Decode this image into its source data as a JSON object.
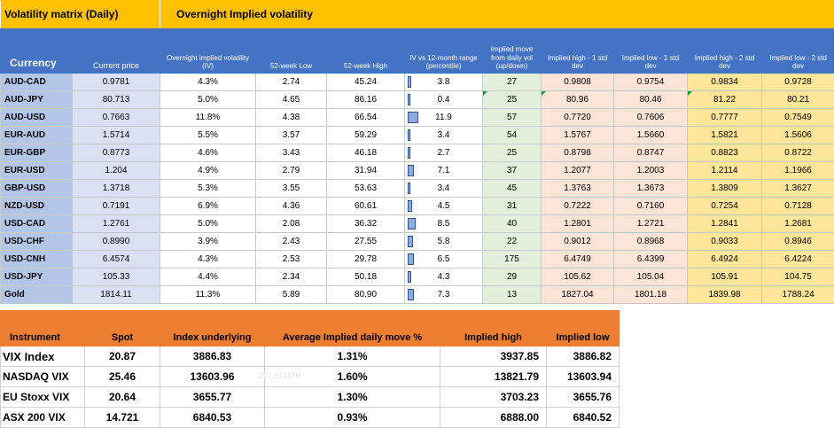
{
  "matrix": {
    "title": "Volatility matrix (Daily)",
    "subtitle": "Overnight Implied volatility",
    "headers": {
      "currency": "Currency",
      "current_price": "Current price",
      "iv": "Overnight implied volatility (IV)",
      "low52": "52-week Low",
      "high52": "52-week High",
      "pct": "IV vs 12-month range (percentile)",
      "move": "Implied move from daily vol (up/down)",
      "h1": "Implied high - 1 std dev",
      "l1": "Implied low - 1 std dev",
      "h2": "Implied high - 2 std dev",
      "l2": "Implied low - 2 std dev"
    },
    "rows": [
      {
        "pair": "AUD-CAD",
        "price": "0.9781",
        "iv": "4.3%",
        "low": "2.74",
        "high": "45.24",
        "pct": "3.8",
        "pctv": 3.8,
        "move": "27",
        "h1": "0.9808",
        "l1": "0.9754",
        "h2": "0.9834",
        "l2": "0.9728"
      },
      {
        "pair": "AUD-JPY",
        "price": "80.713",
        "iv": "5.0%",
        "low": "4.65",
        "high": "86.16",
        "pct": "0.4",
        "pctv": 0.4,
        "move": "25",
        "h1": "80.96",
        "l1": "80.46",
        "h2": "81.22",
        "l2": "80.21"
      },
      {
        "pair": "AUD-USD",
        "price": "0.7663",
        "iv": "11.8%",
        "low": "4.38",
        "high": "66.54",
        "pct": "11.9",
        "pctv": 11.9,
        "move": "57",
        "h1": "0.7720",
        "l1": "0.7606",
        "h2": "0.7777",
        "l2": "0.7549"
      },
      {
        "pair": "EUR-AUD",
        "price": "1.5714",
        "iv": "5.5%",
        "low": "3.57",
        "high": "59.29",
        "pct": "3.4",
        "pctv": 3.4,
        "move": "54",
        "h1": "1.5767",
        "l1": "1.5660",
        "h2": "1.5821",
        "l2": "1.5606"
      },
      {
        "pair": "EUR-GBP",
        "price": "0.8773",
        "iv": "4.6%",
        "low": "3.43",
        "high": "46.18",
        "pct": "2.7",
        "pctv": 2.7,
        "move": "25",
        "h1": "0.8798",
        "l1": "0.8747",
        "h2": "0.8823",
        "l2": "0.8722"
      },
      {
        "pair": "EUR-USD",
        "price": "1.204",
        "iv": "4.9%",
        "low": "2.79",
        "high": "31.94",
        "pct": "7.1",
        "pctv": 7.1,
        "move": "37",
        "h1": "1.2077",
        "l1": "1.2003",
        "h2": "1.2114",
        "l2": "1.1966"
      },
      {
        "pair": "GBP-USD",
        "price": "1.3718",
        "iv": "5.3%",
        "low": "3.55",
        "high": "53.63",
        "pct": "3.4",
        "pctv": 3.4,
        "move": "45",
        "h1": "1.3763",
        "l1": "1.3673",
        "h2": "1.3809",
        "l2": "1.3627"
      },
      {
        "pair": "NZD-USD",
        "price": "0.7191",
        "iv": "6.9%",
        "low": "4.36",
        "high": "60.61",
        "pct": "4.5",
        "pctv": 4.5,
        "move": "31",
        "h1": "0.7222",
        "l1": "0.7160",
        "h2": "0.7254",
        "l2": "0.7128"
      },
      {
        "pair": "USD-CAD",
        "price": "1.2761",
        "iv": "5.0%",
        "low": "2.08",
        "high": "36.32",
        "pct": "8.5",
        "pctv": 8.5,
        "move": "40",
        "h1": "1.2801",
        "l1": "1.2721",
        "h2": "1.2841",
        "l2": "1.2681"
      },
      {
        "pair": "USD-CHF",
        "price": "0.8990",
        "iv": "3.9%",
        "low": "2.43",
        "high": "27.55",
        "pct": "5.8",
        "pctv": 5.8,
        "move": "22",
        "h1": "0.9012",
        "l1": "0.8968",
        "h2": "0.9033",
        "l2": "0.8946"
      },
      {
        "pair": "USD-CNH",
        "price": "6.4574",
        "iv": "4.3%",
        "low": "2.53",
        "high": "29.78",
        "pct": "6.5",
        "pctv": 6.5,
        "move": "175",
        "h1": "6.4749",
        "l1": "6.4399",
        "h2": "6.4924",
        "l2": "6.4224"
      },
      {
        "pair": "USD-JPY",
        "price": "105.33",
        "iv": "4.4%",
        "low": "2.34",
        "high": "50.18",
        "pct": "4.3",
        "pctv": 4.3,
        "move": "29",
        "h1": "105.62",
        "l1": "105.04",
        "h2": "105.91",
        "l2": "104.75"
      },
      {
        "pair": "Gold",
        "price": "1814.11",
        "iv": "11.3%",
        "low": "5.89",
        "high": "80.90",
        "pct": "7.3",
        "pctv": 7.3,
        "move": "13",
        "h1": "1827.04",
        "l1": "1801.18",
        "h2": "1839.98",
        "l2": "1788.24"
      }
    ]
  },
  "vix": {
    "headers": {
      "instrument": "Instrument",
      "spot": "Spot",
      "underlying": "Index underlying",
      "avg": "Average Implied daily move %",
      "high": "Implied high",
      "low": "Implied low"
    },
    "rows": [
      {
        "name": "VIX Index",
        "spot": "20.87",
        "under": "3886.83",
        "avg": "1.31%",
        "high": "3937.85",
        "low": "3886.82"
      },
      {
        "name": "NASDAQ VIX",
        "spot": "25.46",
        "under": "13603.96",
        "avg": "1.60%",
        "high": "13821.79",
        "low": "13603.94"
      },
      {
        "name": "EU Stoxx VIX",
        "spot": "20.64",
        "under": "3655.77",
        "avg": "1.30%",
        "high": "3703.23",
        "low": "3655.76"
      },
      {
        "name": "ASX 200 VIX",
        "spot": "14.721",
        "under": "6840.53",
        "avg": "0.93%",
        "high": "6888.00",
        "low": "6840.52"
      }
    ],
    "faint_value": "217.834479"
  },
  "colors": {
    "title_bg": "#ffc000",
    "header_bg": "#4472c4",
    "currency_bg": "#b4c6e7",
    "price_bg": "#d9e1f2",
    "move_bg": "#e2efda",
    "std1_bg": "#fce4d6",
    "std2_bg": "#ffe699",
    "vix_header_bg": "#ed7d31",
    "bar_fill": "#8ea9db"
  }
}
